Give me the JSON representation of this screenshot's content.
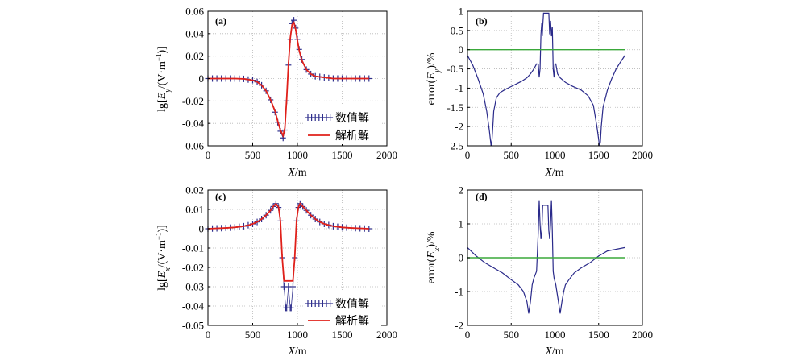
{
  "colors": {
    "numeric": "#2e2e8c",
    "analytic": "#e0201a",
    "error_line": "#2a2a8a",
    "zero_line": "#3aa83a",
    "grid": "#b8b8b8"
  },
  "chart_data": [
    {
      "id": "a",
      "type": "line",
      "panel_label": "(a)",
      "xlabel": "X/m",
      "ylabel": "lg[E_y/(V·m⁻¹)]",
      "xlim": [
        0,
        2000
      ],
      "ylim": [
        -0.06,
        0.06
      ],
      "xticks": [
        "0",
        "500",
        "1000",
        "1500",
        "2000"
      ],
      "yticks": [
        "-0.06",
        "-0.04",
        "-0.02",
        "0",
        "0.02",
        "0.04",
        "0.06"
      ],
      "grid": true,
      "legend_position": "bottom-right",
      "series": [
        {
          "name": "数值解",
          "style": "markers-plus",
          "x": [
            0,
            100,
            200,
            300,
            400,
            500,
            550,
            600,
            650,
            700,
            750,
            780,
            810,
            840,
            860,
            880,
            900,
            920,
            940,
            960,
            980,
            1000,
            1020,
            1050,
            1100,
            1150,
            1200,
            1300,
            1400,
            1500,
            1600,
            1700,
            1800
          ],
          "y": [
            0,
            0,
            0,
            0,
            -0.0003,
            -0.0015,
            -0.003,
            -0.006,
            -0.011,
            -0.019,
            -0.03,
            -0.039,
            -0.047,
            -0.053,
            -0.046,
            -0.02,
            0.012,
            0.035,
            0.049,
            0.052,
            0.045,
            0.035,
            0.026,
            0.017,
            0.008,
            0.004,
            0.002,
            0.001,
            0,
            0,
            0,
            0,
            0
          ]
        },
        {
          "name": "解析解",
          "style": "line",
          "x": [
            0,
            100,
            200,
            300,
            400,
            500,
            550,
            600,
            650,
            700,
            750,
            780,
            810,
            840,
            860,
            880,
            900,
            920,
            940,
            960,
            980,
            1000,
            1020,
            1050,
            1100,
            1150,
            1200,
            1300,
            1400,
            1500,
            1600,
            1700,
            1800
          ],
          "y": [
            0,
            0,
            0,
            0,
            -0.0003,
            -0.0015,
            -0.003,
            -0.006,
            -0.011,
            -0.019,
            -0.029,
            -0.038,
            -0.046,
            -0.051,
            -0.044,
            -0.018,
            0.013,
            0.036,
            0.048,
            0.05,
            0.044,
            0.034,
            0.025,
            0.016,
            0.008,
            0.004,
            0.002,
            0.001,
            0,
            0,
            0,
            0,
            0
          ]
        }
      ]
    },
    {
      "id": "b",
      "type": "line",
      "panel_label": "(b)",
      "xlabel": "X/m",
      "ylabel": "error(E_y)/%",
      "xlim": [
        0,
        2000
      ],
      "ylim": [
        -2.5,
        1
      ],
      "xticks": [
        "0",
        "500",
        "1000",
        "1500",
        "2000"
      ],
      "yticks": [
        "-2.5",
        "-2",
        "-1.5",
        "-1",
        "-0.5",
        "0",
        "0.5",
        "1"
      ],
      "grid": true,
      "series": [
        {
          "name": "",
          "style": "line",
          "x": [
            0,
            60,
            120,
            180,
            220,
            250,
            270,
            280,
            290,
            300,
            330,
            370,
            420,
            480,
            550,
            620,
            680,
            720,
            760,
            790,
            810,
            820,
            830,
            840,
            850,
            855,
            860,
            870,
            880,
            900,
            920,
            930,
            940,
            950,
            960,
            970,
            980,
            990,
            1000,
            1010,
            1020,
            1030,
            1060,
            1120,
            1200,
            1300,
            1380,
            1440,
            1480,
            1510,
            1520,
            1530,
            1550,
            1600,
            1650,
            1700,
            1750,
            1800
          ],
          "y": [
            -0.15,
            -0.4,
            -0.75,
            -1.15,
            -1.6,
            -2.1,
            -2.5,
            -2.35,
            -2.0,
            -1.6,
            -1.25,
            -1.12,
            -1.05,
            -0.98,
            -0.9,
            -0.82,
            -0.73,
            -0.63,
            -0.5,
            -0.37,
            -0.38,
            -0.72,
            -0.5,
            0.4,
            0.7,
            0.35,
            0.6,
            0.95,
            0.95,
            0.95,
            0.95,
            0.95,
            0.4,
            0.75,
            0.35,
            0.6,
            -0.5,
            -0.72,
            -0.38,
            -0.37,
            -0.5,
            -0.63,
            -0.73,
            -0.85,
            -0.95,
            -1.05,
            -1.2,
            -1.45,
            -2.0,
            -2.5,
            -2.4,
            -2.0,
            -1.5,
            -1.05,
            -0.75,
            -0.5,
            -0.32,
            -0.15
          ]
        },
        {
          "name": "",
          "style": "zero-line",
          "x": [
            0,
            1800
          ],
          "y": [
            0,
            0
          ]
        }
      ]
    },
    {
      "id": "c",
      "type": "line",
      "panel_label": "(c)",
      "xlabel": "X/m",
      "ylabel": "lg[E_x/(V·m⁻¹)]",
      "xlim": [
        0,
        2000
      ],
      "ylim": [
        -0.05,
        0.02
      ],
      "xticks": [
        "0",
        "500",
        "1000",
        "1500",
        "2000"
      ],
      "yticks": [
        "-0.05",
        "-0.04",
        "-0.03",
        "-0.02",
        "-0.01",
        "0",
        "0.01",
        "0.02"
      ],
      "grid": true,
      "legend_position": "bottom-right",
      "series": [
        {
          "name": "数值解",
          "style": "markers-plus",
          "x": [
            0,
            100,
            200,
            300,
            400,
            450,
            500,
            550,
            600,
            650,
            700,
            730,
            760,
            790,
            810,
            830,
            850,
            870,
            880,
            900,
            920,
            930,
            950,
            970,
            990,
            1010,
            1030,
            1060,
            1100,
            1150,
            1200,
            1250,
            1300,
            1400,
            1500,
            1600,
            1700,
            1800
          ],
          "y": [
            0,
            0.0002,
            0.0004,
            0.0007,
            0.0013,
            0.0018,
            0.0025,
            0.0035,
            0.005,
            0.007,
            0.0095,
            0.0115,
            0.013,
            0.011,
            0.004,
            -0.015,
            -0.03,
            -0.041,
            -0.041,
            -0.03,
            -0.041,
            -0.041,
            -0.03,
            -0.015,
            0.004,
            0.011,
            0.013,
            0.0115,
            0.0095,
            0.007,
            0.005,
            0.0035,
            0.0025,
            0.0013,
            0.0007,
            0.0004,
            0.0002,
            0
          ]
        },
        {
          "name": "解析解",
          "style": "line",
          "x": [
            0,
            100,
            200,
            300,
            400,
            450,
            500,
            550,
            600,
            650,
            700,
            730,
            760,
            790,
            810,
            830,
            850,
            870,
            890,
            910,
            930,
            950,
            970,
            990,
            1010,
            1030,
            1060,
            1100,
            1150,
            1200,
            1250,
            1300,
            1400,
            1500,
            1600,
            1700,
            1800
          ],
          "y": [
            0,
            0.0002,
            0.0004,
            0.0007,
            0.0013,
            0.0018,
            0.0025,
            0.0035,
            0.005,
            0.007,
            0.0095,
            0.0115,
            0.013,
            0.011,
            0.004,
            -0.015,
            -0.027,
            -0.027,
            -0.027,
            -0.027,
            -0.027,
            -0.027,
            -0.015,
            0.004,
            0.011,
            0.013,
            0.0115,
            0.0095,
            0.007,
            0.005,
            0.0035,
            0.0025,
            0.0013,
            0.0007,
            0.0004,
            0.0002,
            0
          ]
        }
      ]
    },
    {
      "id": "d",
      "type": "line",
      "panel_label": "(d)",
      "xlabel": "X/m",
      "ylabel": "error(E_x)/%",
      "xlim": [
        0,
        2000
      ],
      "ylim": [
        -2,
        2
      ],
      "xticks": [
        "0",
        "500",
        "1000",
        "1500",
        "2000"
      ],
      "yticks": [
        "-2",
        "-1",
        "0",
        "1",
        "2"
      ],
      "grid": true,
      "series": [
        {
          "name": "",
          "style": "line",
          "x": [
            0,
            100,
            200,
            300,
            400,
            500,
            580,
            640,
            680,
            700,
            720,
            740,
            760,
            790,
            810,
            820,
            830,
            840,
            850,
            860,
            880,
            900,
            920,
            930,
            940,
            950,
            960,
            970,
            980,
            990,
            1010,
            1040,
            1060,
            1080,
            1100,
            1120,
            1160,
            1220,
            1300,
            1400,
            1500,
            1600,
            1700,
            1800
          ],
          "y": [
            0.3,
            0.05,
            -0.15,
            -0.3,
            -0.45,
            -0.65,
            -0.8,
            -1.0,
            -1.3,
            -1.65,
            -1.3,
            -0.8,
            -0.6,
            -0.4,
            0.8,
            1.7,
            1.0,
            0.55,
            0.8,
            1.55,
            1.55,
            1.55,
            1.55,
            0.8,
            0.55,
            1.0,
            1.7,
            0.8,
            -0.4,
            -0.6,
            -0.8,
            -1.3,
            -1.65,
            -1.3,
            -1.0,
            -0.8,
            -0.65,
            -0.45,
            -0.3,
            -0.15,
            0.05,
            0.2,
            0.25,
            0.3
          ]
        },
        {
          "name": "",
          "style": "zero-line",
          "x": [
            0,
            1800
          ],
          "y": [
            0,
            0
          ]
        }
      ]
    }
  ]
}
